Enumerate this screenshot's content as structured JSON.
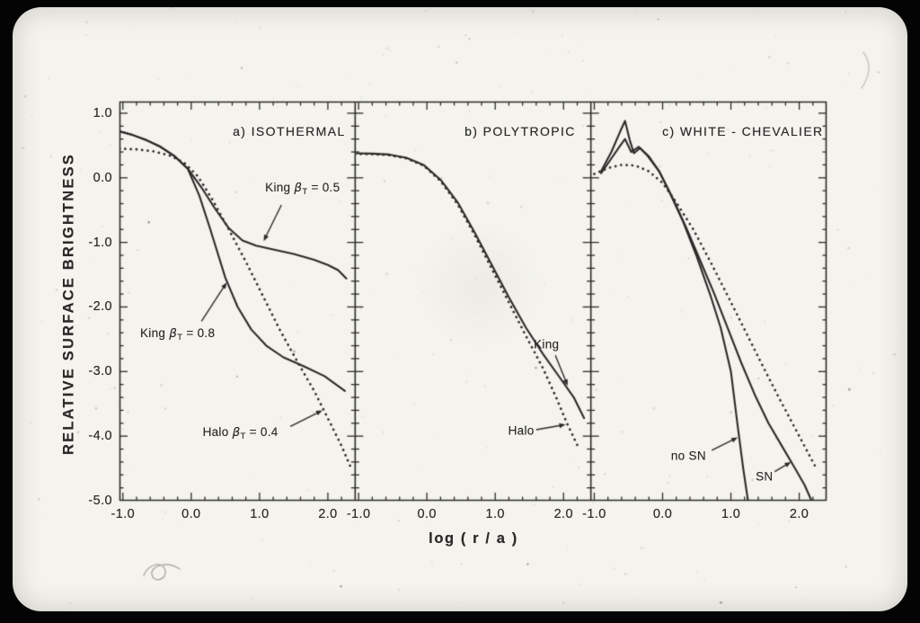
{
  "photo": {
    "background_color": "#040404",
    "card_color": "#f4f3ee",
    "ink_color": "#2b2a28"
  },
  "chart_data": {
    "type": "line",
    "figure_title": "",
    "xlabel": "log ( r / a )",
    "ylabel": "RELATIVE SURFACE BRIGHTNESS",
    "xlim": [
      -1.05,
      2.4
    ],
    "ylim": [
      -5.0,
      1.18
    ],
    "grid": false,
    "legend_position": "none",
    "minor_tick_step": 0.2,
    "x_ticks": {
      "values": [
        -1.0,
        0.0,
        1.0,
        2.0
      ],
      "labels": [
        "-1.0",
        "0.0",
        "1.0",
        "2.0"
      ]
    },
    "y_ticks": {
      "values": [
        1.0,
        0.0,
        -1.0,
        -2.0,
        -3.0,
        -4.0,
        -5.0
      ],
      "labels": [
        "1.0",
        "0.0",
        "-1.0",
        "-2.0",
        "-3.0",
        "-4.0",
        "-5.0"
      ]
    },
    "panels": [
      {
        "id": "a",
        "title": "a) ISOTHERMAL",
        "series": [
          {
            "name": "King βT = 0.5",
            "style": "solid",
            "points": [
              [
                -1.05,
                0.72
              ],
              [
                -0.85,
                0.66
              ],
              [
                -0.65,
                0.58
              ],
              [
                -0.45,
                0.48
              ],
              [
                -0.25,
                0.34
              ],
              [
                -0.05,
                0.14
              ],
              [
                0.15,
                -0.15
              ],
              [
                0.35,
                -0.48
              ],
              [
                0.55,
                -0.78
              ],
              [
                0.75,
                -0.97
              ],
              [
                0.95,
                -1.05
              ],
              [
                1.2,
                -1.11
              ],
              [
                1.5,
                -1.18
              ],
              [
                1.8,
                -1.27
              ],
              [
                2.0,
                -1.35
              ],
              [
                2.15,
                -1.43
              ],
              [
                2.27,
                -1.56
              ]
            ]
          },
          {
            "name": "King βT = 0.8",
            "style": "solid",
            "points": [
              [
                -1.05,
                0.72
              ],
              [
                -0.85,
                0.66
              ],
              [
                -0.65,
                0.58
              ],
              [
                -0.45,
                0.48
              ],
              [
                -0.25,
                0.34
              ],
              [
                -0.05,
                0.14
              ],
              [
                0.12,
                -0.28
              ],
              [
                0.28,
                -0.8
              ],
              [
                0.5,
                -1.55
              ],
              [
                0.68,
                -2.0
              ],
              [
                0.88,
                -2.35
              ],
              [
                1.1,
                -2.6
              ],
              [
                1.35,
                -2.78
              ],
              [
                1.65,
                -2.92
              ],
              [
                1.95,
                -3.07
              ],
              [
                2.25,
                -3.3
              ]
            ]
          },
          {
            "name": "Halo βT = 0.4",
            "style": "dotted",
            "points": [
              [
                -1.05,
                0.45
              ],
              [
                -0.8,
                0.44
              ],
              [
                -0.55,
                0.41
              ],
              [
                -0.3,
                0.34
              ],
              [
                -0.1,
                0.23
              ],
              [
                0.1,
                0.02
              ],
              [
                0.3,
                -0.32
              ],
              [
                0.55,
                -0.8
              ],
              [
                0.8,
                -1.3
              ],
              [
                1.05,
                -1.83
              ],
              [
                1.3,
                -2.36
              ],
              [
                1.55,
                -2.84
              ],
              [
                1.8,
                -3.3
              ],
              [
                2.05,
                -3.83
              ],
              [
                2.2,
                -4.15
              ],
              [
                2.35,
                -4.52
              ]
            ]
          }
        ],
        "annotations": [
          {
            "label": "King βT = 0.5",
            "parts": {
              "pre": "King ",
              "beta": "β",
              "sub": "T",
              "post": " = 0.5"
            },
            "x": 1.63,
            "y": -0.17,
            "arrow": [
              1.32,
              -0.42,
              1.06,
              -0.98
            ]
          },
          {
            "label": "King βT = 0.8",
            "parts": {
              "pre": "King ",
              "beta": "β",
              "sub": "T",
              "post": " = 0.8"
            },
            "x": -0.2,
            "y": -2.42,
            "arrow": [
              0.15,
              -2.22,
              0.52,
              -1.62
            ]
          },
          {
            "label": "Halo βT = 0.4",
            "parts": {
              "pre": "Halo ",
              "beta": "β",
              "sub": "T",
              "post": " = 0.4"
            },
            "x": 0.72,
            "y": -3.95,
            "arrow": [
              1.45,
              -3.85,
              1.92,
              -3.6
            ]
          }
        ]
      },
      {
        "id": "b",
        "title": "b) POLYTROPIC",
        "series": [
          {
            "name": "King",
            "style": "solid",
            "points": [
              [
                -1.05,
                0.38
              ],
              [
                -0.8,
                0.375
              ],
              [
                -0.55,
                0.36
              ],
              [
                -0.3,
                0.31
              ],
              [
                -0.05,
                0.2
              ],
              [
                0.2,
                -0.03
              ],
              [
                0.45,
                -0.38
              ],
              [
                0.7,
                -0.85
              ],
              [
                0.95,
                -1.35
              ],
              [
                1.2,
                -1.85
              ],
              [
                1.45,
                -2.32
              ],
              [
                1.7,
                -2.73
              ],
              [
                1.95,
                -3.1
              ],
              [
                2.15,
                -3.4
              ],
              [
                2.3,
                -3.72
              ]
            ]
          },
          {
            "name": "Halo",
            "style": "dotted",
            "points": [
              [
                -1.05,
                0.37
              ],
              [
                -0.8,
                0.365
              ],
              [
                -0.55,
                0.35
              ],
              [
                -0.3,
                0.3
              ],
              [
                -0.05,
                0.19
              ],
              [
                0.2,
                -0.05
              ],
              [
                0.45,
                -0.41
              ],
              [
                0.7,
                -0.89
              ],
              [
                0.95,
                -1.41
              ],
              [
                1.2,
                -1.93
              ],
              [
                1.45,
                -2.45
              ],
              [
                1.7,
                -2.95
              ],
              [
                1.9,
                -3.42
              ],
              [
                2.05,
                -3.8
              ],
              [
                2.22,
                -4.18
              ]
            ]
          }
        ],
        "annotations": [
          {
            "label": "King",
            "parts": {
              "pre": "King"
            },
            "x": 1.75,
            "y": -2.58,
            "arrow": [
              1.88,
              -2.75,
              2.06,
              -3.22
            ]
          },
          {
            "label": "Halo",
            "parts": {
              "pre": "Halo"
            },
            "x": 1.38,
            "y": -3.92,
            "arrow": [
              1.6,
              -3.9,
              2.03,
              -3.82
            ]
          }
        ]
      },
      {
        "id": "c",
        "title": "c) WHITE - CHEVALIER",
        "series": [
          {
            "name": "",
            "style": "dotted",
            "points": [
              [
                -1.0,
                0.06
              ],
              [
                -0.8,
                0.15
              ],
              [
                -0.6,
                0.2
              ],
              [
                -0.4,
                0.19
              ],
              [
                -0.2,
                0.1
              ],
              [
                0.0,
                -0.08
              ],
              [
                0.2,
                -0.38
              ],
              [
                0.45,
                -0.8
              ],
              [
                0.7,
                -1.3
              ],
              [
                0.95,
                -1.82
              ],
              [
                1.2,
                -2.35
              ],
              [
                1.45,
                -2.88
              ],
              [
                1.7,
                -3.4
              ],
              [
                1.95,
                -3.9
              ],
              [
                2.1,
                -4.2
              ],
              [
                2.25,
                -4.5
              ]
            ]
          },
          {
            "name": "no SN",
            "style": "solid",
            "points": [
              [
                -0.9,
                0.1
              ],
              [
                -0.75,
                0.4
              ],
              [
                -0.62,
                0.72
              ],
              [
                -0.55,
                0.88
              ],
              [
                -0.48,
                0.58
              ],
              [
                -0.42,
                0.38
              ],
              [
                -0.33,
                0.46
              ],
              [
                -0.2,
                0.33
              ],
              [
                -0.05,
                0.1
              ],
              [
                0.1,
                -0.22
              ],
              [
                0.3,
                -0.68
              ],
              [
                0.5,
                -1.22
              ],
              [
                0.7,
                -1.82
              ],
              [
                0.85,
                -2.32
              ],
              [
                1.0,
                -3.0
              ],
              [
                1.1,
                -3.85
              ],
              [
                1.18,
                -4.5
              ],
              [
                1.25,
                -5.0
              ]
            ]
          },
          {
            "name": "SN",
            "style": "solid",
            "points": [
              [
                -0.9,
                0.07
              ],
              [
                -0.75,
                0.3
              ],
              [
                -0.62,
                0.5
              ],
              [
                -0.55,
                0.6
              ],
              [
                -0.46,
                0.4
              ],
              [
                -0.35,
                0.48
              ],
              [
                -0.22,
                0.34
              ],
              [
                -0.05,
                0.1
              ],
              [
                0.15,
                -0.32
              ],
              [
                0.35,
                -0.78
              ],
              [
                0.55,
                -1.28
              ],
              [
                0.75,
                -1.78
              ],
              [
                0.95,
                -2.32
              ],
              [
                1.15,
                -2.86
              ],
              [
                1.35,
                -3.36
              ],
              [
                1.55,
                -3.8
              ],
              [
                1.75,
                -4.16
              ],
              [
                1.95,
                -4.52
              ],
              [
                2.08,
                -4.76
              ],
              [
                2.18,
                -5.0
              ]
            ]
          }
        ],
        "annotations": [
          {
            "label": "no SN",
            "parts": {
              "pre": "no SN"
            },
            "x": 0.38,
            "y": -4.31,
            "arrow": [
              0.72,
              -4.22,
              1.1,
              -4.02
            ]
          },
          {
            "label": "SN",
            "parts": {
              "pre": "SN"
            },
            "x": 1.49,
            "y": -4.63,
            "arrow": [
              1.64,
              -4.55,
              1.88,
              -4.4
            ]
          }
        ]
      }
    ]
  }
}
